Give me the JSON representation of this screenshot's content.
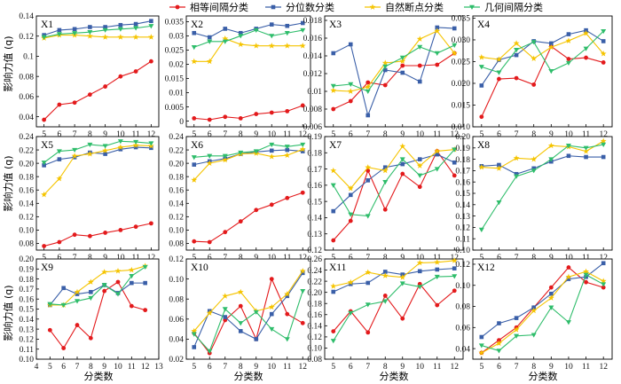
{
  "legend": [
    {
      "name": "相等间隔分类",
      "color": "#e31a1c",
      "marker": "circle"
    },
    {
      "name": "分位数分类",
      "color": "#3a5fa8",
      "marker": "square"
    },
    {
      "name": "自然断点分类",
      "color": "#f5c400",
      "marker": "star"
    },
    {
      "name": "几何间隔分类",
      "color": "#2fbd6b",
      "marker": "triangle-down"
    }
  ],
  "axis_labels": {
    "x": "分类数",
    "y_rows": [
      "影响力值 (q)",
      "影响力值 (q)",
      "影响力值 (q)"
    ]
  },
  "chart_data": [
    {
      "type": "line",
      "title": "X1",
      "x": [
        5,
        6,
        7,
        8,
        9,
        10,
        11,
        12
      ],
      "xlim": [
        4.5,
        12.5
      ],
      "ylim": [
        0.03,
        0.14
      ],
      "yticks": [
        0.04,
        0.06,
        0.08,
        0.1,
        0.12,
        0.14
      ],
      "ytick_labels": [
        "0.04",
        "0.06",
        "0.08",
        "0.1",
        "0.12",
        "0.14"
      ],
      "series": [
        {
          "name": "相等间隔分类",
          "values": [
            0.037,
            0.052,
            0.054,
            0.062,
            0.07,
            0.08,
            0.085,
            0.095
          ]
        },
        {
          "name": "分位数分类",
          "values": [
            0.121,
            0.126,
            0.127,
            0.129,
            0.129,
            0.131,
            0.132,
            0.135
          ]
        },
        {
          "name": "自然断点分类",
          "values": [
            0.118,
            0.121,
            0.121,
            0.12,
            0.119,
            0.119,
            0.119,
            0.119
          ]
        },
        {
          "name": "几何间隔分类",
          "values": [
            0.119,
            0.122,
            0.123,
            0.124,
            0.126,
            0.127,
            0.128,
            0.13
          ]
        }
      ]
    },
    {
      "type": "line",
      "title": "X2",
      "x": [
        5,
        6,
        7,
        8,
        9,
        10,
        11,
        12
      ],
      "xlim": [
        4.5,
        12.5
      ],
      "ylim": [
        -0.002,
        0.037
      ],
      "yticks": [
        0,
        0.005,
        0.01,
        0.015,
        0.02,
        0.025,
        0.03,
        0.035
      ],
      "ytick_labels": [
        "0",
        "0.005",
        "0.01",
        "0.015",
        "0.02",
        "0.025",
        "0.03",
        "0.035"
      ],
      "series": [
        {
          "name": "相等间隔分类",
          "values": [
            0.001,
            0.0005,
            0.0015,
            0.001,
            0.0025,
            0.003,
            0.0035,
            0.0055
          ]
        },
        {
          "name": "分位数分类",
          "values": [
            0.031,
            0.0295,
            0.0325,
            0.031,
            0.0325,
            0.034,
            0.0335,
            0.0345
          ]
        },
        {
          "name": "自然断点分类",
          "values": [
            0.021,
            0.021,
            0.029,
            0.027,
            0.0265,
            0.0265,
            0.0265,
            0.0265
          ]
        },
        {
          "name": "几何间隔分类",
          "values": [
            0.026,
            0.028,
            0.028,
            0.03,
            0.032,
            0.03,
            0.031,
            0.032
          ]
        }
      ]
    },
    {
      "type": "line",
      "title": "X3",
      "x": [
        5,
        6,
        7,
        8,
        9,
        10,
        11,
        12
      ],
      "xlim": [
        4.5,
        12.5
      ],
      "ylim": [
        0.006,
        0.0185
      ],
      "yticks": [
        0.006,
        0.008,
        0.01,
        0.012,
        0.014,
        0.016,
        0.018
      ],
      "ytick_labels": [
        "0.006",
        "0.008",
        "0.01",
        "0.012",
        "0.014",
        "0.016",
        "0.018"
      ],
      "series": [
        {
          "name": "相等间隔分类",
          "values": [
            0.008,
            0.0089,
            0.011,
            0.0107,
            0.0129,
            0.0129,
            0.013,
            0.0143
          ]
        },
        {
          "name": "分位数分类",
          "values": [
            0.0143,
            0.0153,
            0.0073,
            0.0124,
            0.0121,
            0.0111,
            0.0172,
            0.0171
          ]
        },
        {
          "name": "自然断点分类",
          "values": [
            0.0101,
            0.01,
            0.0105,
            0.0132,
            0.0134,
            0.0159,
            0.0168,
            0.0143
          ]
        },
        {
          "name": "几何间隔分类",
          "values": [
            0.0106,
            0.0108,
            0.01,
            0.0128,
            0.0138,
            0.015,
            0.0143,
            0.0152
          ]
        }
      ]
    },
    {
      "type": "line",
      "title": "X4",
      "x": [
        5,
        6,
        7,
        8,
        9,
        10,
        11,
        12
      ],
      "xlim": [
        4.5,
        12.5
      ],
      "ylim": [
        0.01,
        0.0355
      ],
      "yticks": [
        0.01,
        0.015,
        0.02,
        0.025,
        0.03,
        0.035
      ],
      "ytick_labels": [
        "0.010",
        "0.015",
        "0.020",
        "0.025",
        "0.030",
        "0.035"
      ],
      "series": [
        {
          "name": "相等间隔分类",
          "values": [
            0.0123,
            0.021,
            0.0212,
            0.0197,
            0.0285,
            0.0256,
            0.0259,
            0.0248
          ]
        },
        {
          "name": "分位数分类",
          "values": [
            0.0195,
            0.0254,
            0.0265,
            0.0297,
            0.0292,
            0.0313,
            0.0322,
            0.0297
          ]
        },
        {
          "name": "自然断点分类",
          "values": [
            0.026,
            0.0255,
            0.0292,
            0.0257,
            0.0283,
            0.0298,
            0.0315,
            0.0268
          ]
        },
        {
          "name": "几何间隔分类",
          "values": [
            0.0238,
            0.0225,
            0.0277,
            0.0295,
            0.0228,
            0.0247,
            0.028,
            0.032
          ]
        }
      ]
    },
    {
      "type": "line",
      "title": "X5",
      "x": [
        5,
        6,
        7,
        8,
        9,
        10,
        11,
        12
      ],
      "xlim": [
        4.5,
        12.5
      ],
      "ylim": [
        0.07,
        0.24
      ],
      "yticks": [
        0.08,
        0.1,
        0.12,
        0.14,
        0.16,
        0.18,
        0.2,
        0.22,
        0.24
      ],
      "ytick_labels": [
        "0.08",
        "0.10",
        "0.12",
        "0.14",
        "0.16",
        "0.18",
        "0.20",
        "0.22",
        "0.24"
      ],
      "series": [
        {
          "name": "相等间隔分类",
          "values": [
            0.076,
            0.082,
            0.093,
            0.091,
            0.096,
            0.1,
            0.105,
            0.11
          ]
        },
        {
          "name": "分位数分类",
          "values": [
            0.197,
            0.206,
            0.209,
            0.216,
            0.214,
            0.221,
            0.224,
            0.223
          ]
        },
        {
          "name": "自然断点分类",
          "values": [
            0.153,
            0.177,
            0.211,
            0.214,
            0.219,
            0.224,
            0.227,
            0.226
          ]
        },
        {
          "name": "几何间隔分类",
          "values": [
            0.201,
            0.218,
            0.22,
            0.228,
            0.226,
            0.233,
            0.232,
            0.23
          ]
        }
      ]
    },
    {
      "type": "line",
      "title": "X6",
      "x": [
        5,
        6,
        7,
        8,
        9,
        10,
        11,
        12
      ],
      "xlim": [
        4.5,
        12.5
      ],
      "ylim": [
        0.07,
        0.24
      ],
      "yticks": [
        0.08,
        0.1,
        0.12,
        0.14,
        0.16,
        0.18,
        0.2,
        0.22,
        0.24
      ],
      "ytick_labels": [
        "0.08",
        "0.10",
        "0.12",
        "0.14",
        "0.16",
        "0.18",
        "0.20",
        "0.22",
        "0.24"
      ],
      "series": [
        {
          "name": "相等间隔分类",
          "values": [
            0.083,
            0.082,
            0.097,
            0.113,
            0.13,
            0.138,
            0.148,
            0.156
          ]
        },
        {
          "name": "分位数分类",
          "values": [
            0.198,
            0.203,
            0.207,
            0.214,
            0.217,
            0.219,
            0.22,
            0.218
          ]
        },
        {
          "name": "自然断点分类",
          "values": [
            0.175,
            0.2,
            0.205,
            0.214,
            0.215,
            0.21,
            0.212,
            0.221
          ]
        },
        {
          "name": "几何间隔分类",
          "values": [
            0.209,
            0.211,
            0.211,
            0.216,
            0.218,
            0.228,
            0.225,
            0.228
          ]
        }
      ]
    },
    {
      "type": "line",
      "title": "X7",
      "x": [
        5,
        6,
        7,
        8,
        9,
        10,
        11,
        12
      ],
      "xlim": [
        4.5,
        12.5
      ],
      "ylim": [
        0.12,
        0.19
      ],
      "yticks": [
        0.12,
        0.13,
        0.14,
        0.15,
        0.16,
        0.17,
        0.18,
        0.19
      ],
      "ytick_labels": [
        "0.12",
        "0.13",
        "0.14",
        "0.15",
        "0.16",
        "0.17",
        "0.18",
        "0.19"
      ],
      "series": [
        {
          "name": "相等间隔分类",
          "values": [
            0.126,
            0.138,
            0.169,
            0.145,
            0.167,
            0.159,
            0.181,
            0.166
          ]
        },
        {
          "name": "分位数分类",
          "values": [
            0.144,
            0.154,
            0.163,
            0.171,
            0.173,
            0.176,
            0.179,
            0.174
          ]
        },
        {
          "name": "自然断点分类",
          "values": [
            0.169,
            0.158,
            0.171,
            0.169,
            0.184,
            0.172,
            0.181,
            0.182
          ]
        },
        {
          "name": "几何间隔分类",
          "values": [
            0.16,
            0.142,
            0.141,
            0.162,
            0.176,
            0.166,
            0.17,
            0.182
          ]
        }
      ]
    },
    {
      "type": "line",
      "title": "X8",
      "x": [
        5,
        6,
        7,
        8,
        9,
        10,
        11,
        12
      ],
      "xlim": [
        4.5,
        12.5
      ],
      "ylim": [
        0.1,
        0.2
      ],
      "yticks": [
        0.1,
        0.11,
        0.12,
        0.13,
        0.14,
        0.15,
        0.16,
        0.17,
        0.18,
        0.19,
        0.2
      ],
      "ytick_labels": [
        "0.10",
        "0.11",
        "0.12",
        "0.13",
        "0.14",
        "0.15",
        "0.16",
        "0.17",
        "0.18",
        "0.19",
        "0.20"
      ],
      "series": [
        {
          "name": "分位数分类",
          "values": [
            0.174,
            0.175,
            0.167,
            0.172,
            0.178,
            0.183,
            0.182,
            0.182
          ]
        },
        {
          "name": "自然断点分类",
          "values": [
            0.173,
            0.172,
            0.181,
            0.18,
            0.192,
            0.191,
            0.187,
            0.196
          ]
        },
        {
          "name": "几何间隔分类",
          "values": [
            0.118,
            0.142,
            0.165,
            0.17,
            0.18,
            0.192,
            0.19,
            0.193
          ]
        }
      ]
    },
    {
      "type": "line",
      "title": "X9",
      "x": [
        5,
        6,
        7,
        8,
        9,
        10,
        11,
        12
      ],
      "xlim": [
        4,
        13
      ],
      "ylim": [
        0.1,
        0.2
      ],
      "yticks": [
        0.1,
        0.11,
        0.12,
        0.13,
        0.14,
        0.15,
        0.16,
        0.17,
        0.18,
        0.19,
        0.2
      ],
      "ytick_labels": [
        "0.10",
        "0.11",
        "0.12",
        "0.13",
        "0.14",
        "0.15",
        "0.16",
        "0.17",
        "0.18",
        "0.19",
        "0.20"
      ],
      "xticks": [
        4,
        5,
        6,
        7,
        8,
        9,
        10,
        11,
        12,
        13
      ],
      "series": [
        {
          "name": "相等间隔分类",
          "values": [
            0.129,
            0.111,
            0.134,
            0.121,
            0.168,
            0.177,
            0.153,
            0.149
          ]
        },
        {
          "name": "分位数分类",
          "values": [
            0.154,
            0.171,
            0.165,
            0.167,
            0.174,
            0.166,
            0.176,
            0.176
          ]
        },
        {
          "name": "自然断点分类",
          "values": [
            0.154,
            0.154,
            0.167,
            0.177,
            0.187,
            0.188,
            0.189,
            0.193
          ]
        },
        {
          "name": "几何间隔分类",
          "values": [
            0.155,
            0.154,
            0.158,
            0.161,
            0.174,
            0.165,
            0.183,
            0.192
          ]
        }
      ]
    },
    {
      "type": "line",
      "title": "X10",
      "x": [
        5,
        6,
        7,
        8,
        9,
        10,
        11,
        12
      ],
      "xlim": [
        4.5,
        12.5
      ],
      "ylim": [
        0.02,
        0.12
      ],
      "yticks": [
        0.02,
        0.04,
        0.06,
        0.08,
        0.1,
        0.12
      ],
      "ytick_labels": [
        "0.02",
        "0.04",
        "0.06",
        "0.08",
        "0.10",
        "0.12"
      ],
      "series": [
        {
          "name": "相等间隔分类",
          "values": [
            0.046,
            0.026,
            0.059,
            0.073,
            0.04,
            0.1,
            0.065,
            0.056
          ]
        },
        {
          "name": "分位数分类",
          "values": [
            0.032,
            0.068,
            0.062,
            0.048,
            0.04,
            0.065,
            0.083,
            0.106
          ]
        },
        {
          "name": "自然断点分类",
          "values": [
            0.048,
            0.066,
            0.083,
            0.087,
            0.068,
            0.072,
            0.085,
            0.108
          ]
        },
        {
          "name": "几何间隔分类",
          "values": [
            0.045,
            0.028,
            0.07,
            0.056,
            0.067,
            0.05,
            0.04,
            0.088
          ]
        }
      ]
    },
    {
      "type": "line",
      "title": "X11",
      "x": [
        5,
        6,
        7,
        8,
        9,
        10,
        11,
        12
      ],
      "xlim": [
        4.5,
        12.5
      ],
      "ylim": [
        0.08,
        0.26
      ],
      "yticks": [
        0.08,
        0.1,
        0.12,
        0.14,
        0.16,
        0.18,
        0.2,
        0.22,
        0.24,
        0.26
      ],
      "ytick_labels": [
        "0.08",
        "0.10",
        "0.12",
        "0.14",
        "0.16",
        "0.18",
        "0.20",
        "0.22",
        "0.24",
        "0.26"
      ],
      "series": [
        {
          "name": "相等间隔分类",
          "values": [
            0.13,
            0.166,
            0.128,
            0.194,
            0.153,
            0.215,
            0.177,
            0.203
          ]
        },
        {
          "name": "分位数分类",
          "values": [
            0.201,
            0.215,
            0.217,
            0.237,
            0.232,
            0.238,
            0.241,
            0.243
          ]
        },
        {
          "name": "自然断点分类",
          "values": [
            0.211,
            0.218,
            0.236,
            0.23,
            0.227,
            0.253,
            0.254,
            0.257
          ]
        },
        {
          "name": "几何间隔分类",
          "values": [
            0.113,
            0.163,
            0.178,
            0.184,
            0.216,
            0.21,
            0.228,
            0.229
          ]
        }
      ]
    },
    {
      "type": "line",
      "title": "X12",
      "x": [
        5,
        6,
        7,
        8,
        9,
        10,
        11,
        12
      ],
      "xlim": [
        4.5,
        12.5
      ],
      "ylim": [
        0.03,
        0.125
      ],
      "yticks": [
        0.04,
        0.06,
        0.08,
        0.1,
        0.12
      ],
      "ytick_labels": [
        "0.04",
        "0.06",
        "0.08",
        "0.10",
        "0.12"
      ],
      "series": [
        {
          "name": "相等间隔分类",
          "values": [
            0.036,
            0.048,
            0.06,
            0.079,
            0.098,
            0.117,
            0.103,
            0.098
          ]
        },
        {
          "name": "分位数分类",
          "values": [
            0.051,
            0.064,
            0.069,
            0.079,
            0.092,
            0.106,
            0.108,
            0.121
          ]
        },
        {
          "name": "自然断点分类",
          "values": [
            0.036,
            0.045,
            0.058,
            0.076,
            0.088,
            0.108,
            0.113,
            0.104
          ]
        },
        {
          "name": "几何间隔分类",
          "values": [
            0.043,
            0.038,
            0.052,
            0.053,
            0.079,
            0.065,
            0.11,
            0.101
          ]
        }
      ]
    }
  ]
}
